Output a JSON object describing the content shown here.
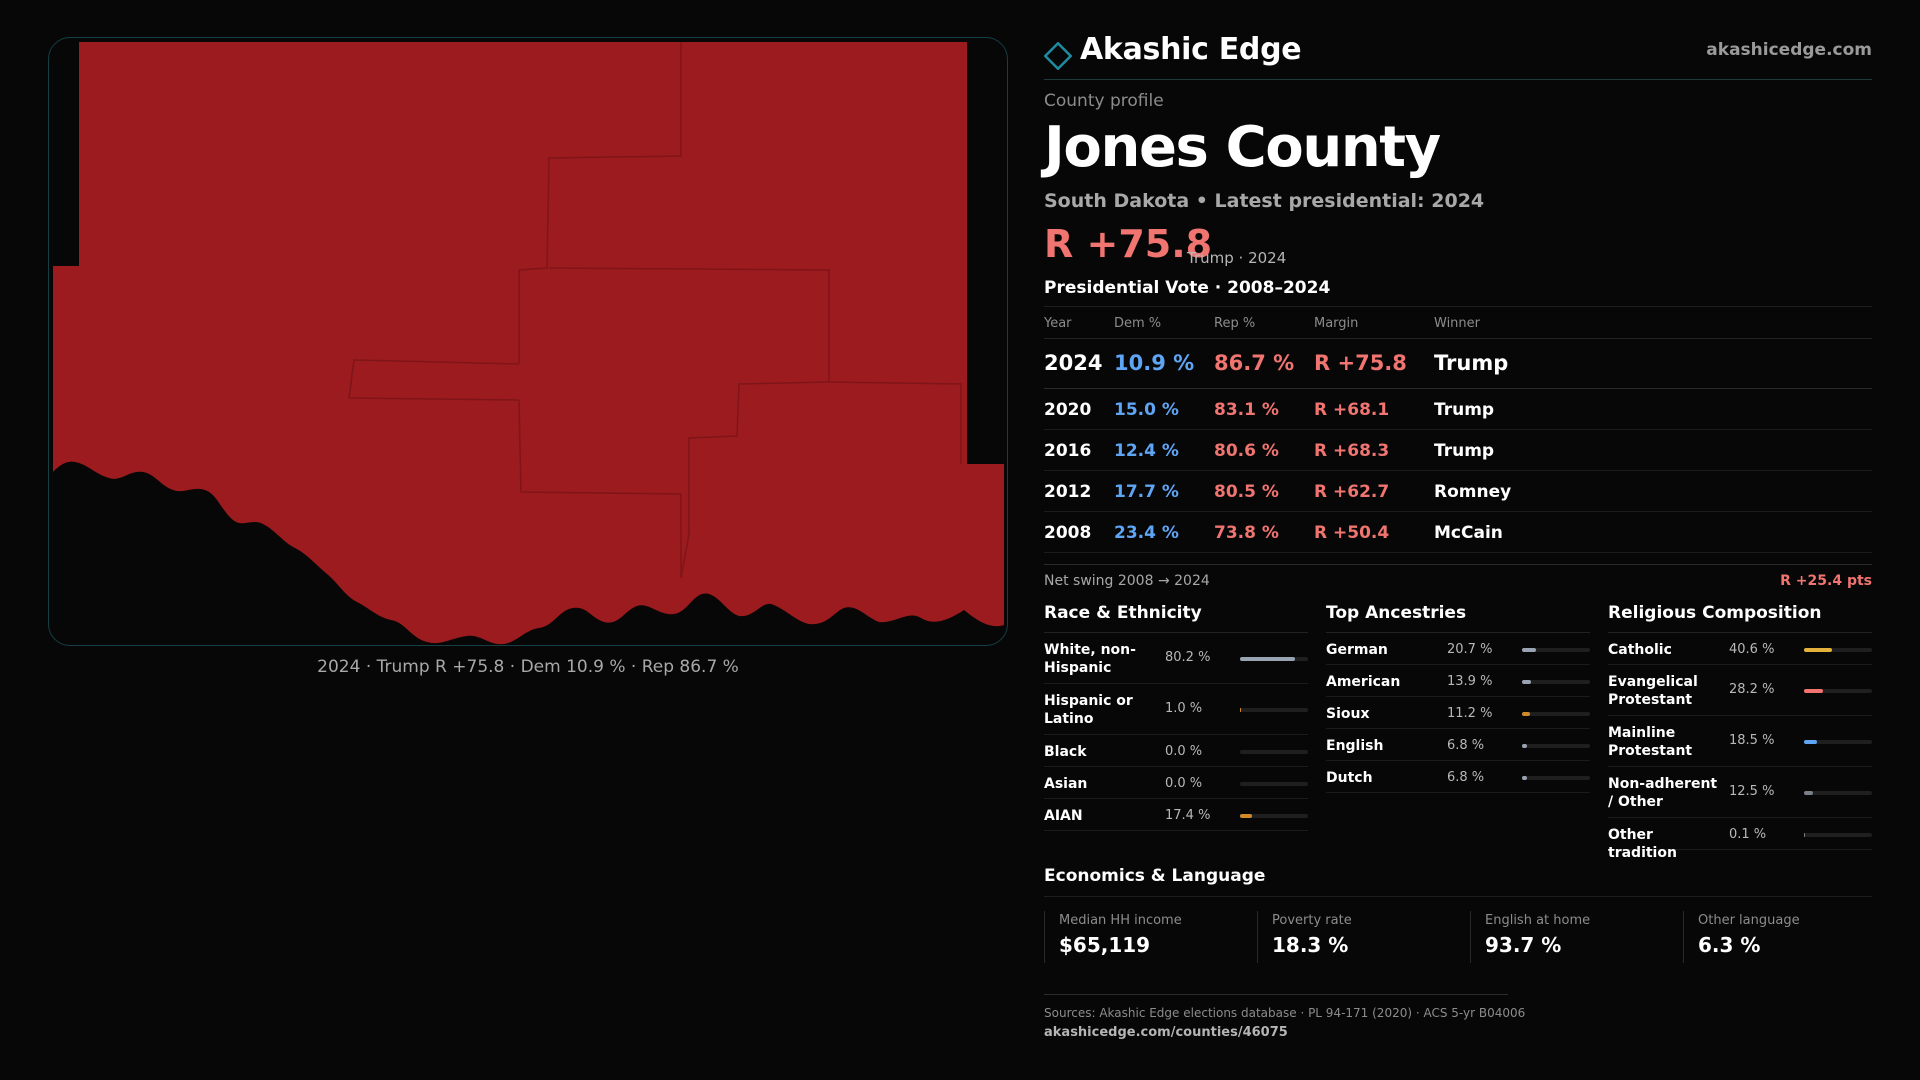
{
  "colors": {
    "rep": "#f07470",
    "dem": "#5fa5f5",
    "map_fill": "#9c1b1e",
    "accent": "#1d8ca0"
  },
  "map": {
    "caption": "2024 · Trump R +75.8 · Dem 10.9 % · Rep 86.7 %"
  },
  "brand": {
    "icon": "diamond-icon",
    "name": "Akashic Edge",
    "url": "akashicedge.com"
  },
  "profile": {
    "eyebrow": "County profile",
    "title": "Jones County",
    "subtitle": "South Dakota • Latest presidential: 2024",
    "margin": "R +75.8",
    "margin_note": "Trump · 2024"
  },
  "vote": {
    "title": "Presidential Vote · 2008–2024",
    "headers": [
      "Year",
      "Dem %",
      "Rep %",
      "Margin",
      "Winner"
    ],
    "rows": [
      {
        "year": "2024",
        "dem": "10.9 %",
        "rep": "86.7 %",
        "margin": "R +75.8",
        "winner": "Trump"
      },
      {
        "year": "2020",
        "dem": "15.0 %",
        "rep": "83.1 %",
        "margin": "R +68.1",
        "winner": "Trump"
      },
      {
        "year": "2016",
        "dem": "12.4 %",
        "rep": "80.6 %",
        "margin": "R +68.3",
        "winner": "Trump"
      },
      {
        "year": "2012",
        "dem": "17.7 %",
        "rep": "80.5 %",
        "margin": "R +62.7",
        "winner": "Romney"
      },
      {
        "year": "2008",
        "dem": "23.4 %",
        "rep": "73.8 %",
        "margin": "R +50.4",
        "winner": "McCain"
      }
    ],
    "swing_label": "Net swing 2008 → 2024",
    "swing_value": "R +25.4 pts"
  },
  "race": {
    "title": "Race & Ethnicity",
    "items": [
      {
        "label": "White, non-Hispanic",
        "pct": "80.2 %",
        "value": 80.2,
        "color": "#9aa3b2"
      },
      {
        "label": "Hispanic or Latino",
        "pct": "1.0 %",
        "value": 1.0,
        "color": "#d08a2a"
      },
      {
        "label": "Black",
        "pct": "0.0 %",
        "value": 0.0,
        "color": "#9aa3b2"
      },
      {
        "label": "Asian",
        "pct": "0.0 %",
        "value": 0.0,
        "color": "#9aa3b2"
      },
      {
        "label": "AIAN",
        "pct": "17.4 %",
        "value": 17.4,
        "color": "#d08a2a"
      }
    ]
  },
  "ancestry": {
    "title": "Top Ancestries",
    "items": [
      {
        "label": "German",
        "pct": "20.7 %",
        "value": 20.7,
        "color": "#9aa3b2"
      },
      {
        "label": "American",
        "pct": "13.9 %",
        "value": 13.9,
        "color": "#9aa3b2"
      },
      {
        "label": "Sioux",
        "pct": "11.2 %",
        "value": 11.2,
        "color": "#d08a2a"
      },
      {
        "label": "English",
        "pct": "6.8 %",
        "value": 6.8,
        "color": "#9aa3b2"
      },
      {
        "label": "Dutch",
        "pct": "6.8 %",
        "value": 6.8,
        "color": "#9aa3b2"
      }
    ]
  },
  "religion": {
    "title": "Religious Composition",
    "items": [
      {
        "label": "Catholic",
        "pct": "40.6 %",
        "value": 40.6,
        "color": "#e2b23a"
      },
      {
        "label": "Evangelical Protestant",
        "pct": "28.2 %",
        "value": 28.2,
        "color": "#f07470"
      },
      {
        "label": "Mainline Protestant",
        "pct": "18.5 %",
        "value": 18.5,
        "color": "#5fa5f5"
      },
      {
        "label": "Non-adherent / Other",
        "pct": "12.5 %",
        "value": 12.5,
        "color": "#7a7f88"
      },
      {
        "label": "Other tradition",
        "pct": "0.1 %",
        "value": 0.1,
        "color": "#7a7f88"
      }
    ]
  },
  "econ": {
    "title": "Economics & Language",
    "tiles": [
      {
        "label": "Median HH income",
        "value": "$65,119"
      },
      {
        "label": "Poverty rate",
        "value": "18.3 %"
      },
      {
        "label": "English at home",
        "value": "93.7 %"
      },
      {
        "label": "Other language",
        "value": "6.3 %"
      }
    ]
  },
  "footer": {
    "sources": "Sources: Akashic Edge elections database · PL 94-171 (2020) · ACS 5-yr B04006",
    "url": "akashicedge.com/counties/46075"
  }
}
